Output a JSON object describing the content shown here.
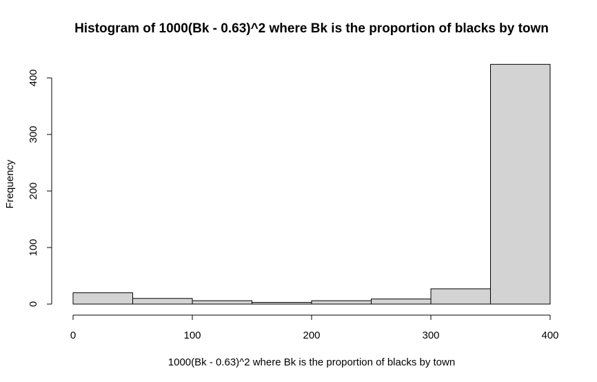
{
  "chart_data": {
    "type": "bar",
    "title": "Histogram of 1000(Bk - 0.63)^2 where Bk is the proportion of blacks by town",
    "xlabel": "1000(Bk - 0.63)^2 where Bk is the proportion of blacks by town",
    "ylabel": "Frequency",
    "bins": [
      {
        "from": 0,
        "to": 50,
        "count": 20
      },
      {
        "from": 50,
        "to": 100,
        "count": 10
      },
      {
        "from": 100,
        "to": 150,
        "count": 6
      },
      {
        "from": 150,
        "to": 200,
        "count": 3
      },
      {
        "from": 200,
        "to": 250,
        "count": 6
      },
      {
        "from": 250,
        "to": 300,
        "count": 9
      },
      {
        "from": 300,
        "to": 350,
        "count": 27
      },
      {
        "from": 350,
        "to": 400,
        "count": 424
      }
    ],
    "xlim": [
      0,
      400
    ],
    "ylim": [
      0,
      424
    ],
    "x_ticks": [
      0,
      100,
      200,
      300,
      400
    ],
    "y_ticks": [
      0,
      100,
      200,
      300,
      400
    ],
    "grid": false,
    "legend": "none",
    "colors": {
      "bar_fill": "#d3d3d3",
      "bar_stroke": "#000000"
    }
  }
}
